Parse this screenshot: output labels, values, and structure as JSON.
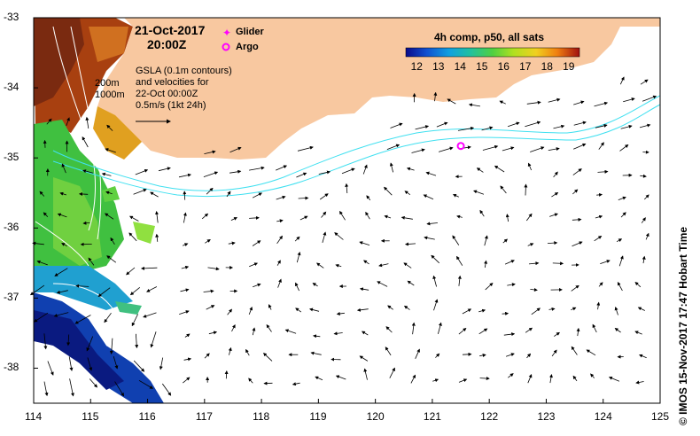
{
  "header": {
    "date": "21-Oct-2017",
    "time": "20:00Z"
  },
  "legend": {
    "glider": "Glider",
    "argo": "Argo",
    "glider_color": "#ff00ff",
    "argo_color": "#ff00ff"
  },
  "annotation": {
    "line1": "GSLA (0.1m contours)",
    "line2": "and velocities for",
    "line3": "22-Oct 00:00Z",
    "scale": "0.5m/s (1kt 24h)"
  },
  "depth_labels": {
    "shallow": "200m",
    "deep": "1000m"
  },
  "colorbar": {
    "title": "4h comp, p50, all sats",
    "ticks": [
      "12",
      "13",
      "14",
      "15",
      "16",
      "17",
      "18",
      "19"
    ],
    "min": 11.5,
    "max": 19.5
  },
  "axes": {
    "x_ticks": [
      "114",
      "115",
      "116",
      "117",
      "118",
      "119",
      "120",
      "121",
      "122",
      "123",
      "124",
      "125"
    ],
    "y_ticks": [
      "-33",
      "-34",
      "-35",
      "-36",
      "-37",
      "-38"
    ]
  },
  "argo_position": {
    "lon": 121.5,
    "lat": -34.83
  },
  "credit": "© IMOS 15-Nov-2017 17:47 Hobart Time",
  "colors": {
    "land": "#f8c8a0",
    "front": "#40e0f0",
    "contour": "#ffffff"
  }
}
